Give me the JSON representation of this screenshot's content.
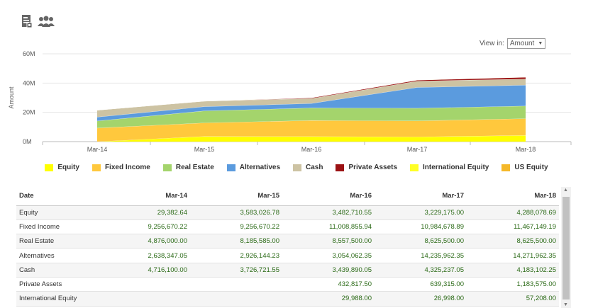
{
  "toolbar": {
    "icons": [
      "report-icon",
      "users-icon"
    ]
  },
  "view_in": {
    "label": "View in:",
    "value": "Amount"
  },
  "colors": {
    "Equity": "#ffff00",
    "Fixed Income": "#ffc83d",
    "Real Estate": "#a4d46c",
    "Alternatives": "#5b9bde",
    "Cash": "#cdc3a3",
    "Private Assets": "#9b1214",
    "International Equity": "#ffff26",
    "US Equity": "#f5b829"
  },
  "chart_data": {
    "type": "area",
    "stacked": true,
    "categories": [
      "Mar-14",
      "Mar-15",
      "Mar-16",
      "Mar-17",
      "Mar-18"
    ],
    "ylabel": "Amount",
    "ylim": [
      0,
      60000000
    ],
    "yticks": [
      0,
      20000000,
      40000000,
      60000000
    ],
    "ytick_labels": [
      "0M",
      "20M",
      "40M",
      "60M"
    ],
    "grid": true,
    "legend": "bottom",
    "series": [
      {
        "name": "Equity",
        "values": [
          29382.64,
          3583026.78,
          3482710.55,
          3229175.0,
          4288078.69
        ]
      },
      {
        "name": "Fixed Income",
        "values": [
          9256670.22,
          9256670.22,
          11008855.94,
          10984678.89,
          11467149.19
        ]
      },
      {
        "name": "Real Estate",
        "values": [
          4876000.0,
          8185585.0,
          8557500.0,
          8625500.0,
          8625500.0
        ]
      },
      {
        "name": "Alternatives",
        "values": [
          2638347.05,
          2926144.23,
          3054062.35,
          14235962.35,
          14271962.35
        ]
      },
      {
        "name": "Cash",
        "values": [
          4716100.0,
          3726721.55,
          3439890.05,
          4325237.05,
          4183102.25
        ]
      },
      {
        "name": "Private Assets",
        "values": [
          0,
          0,
          432817.5,
          639315.0,
          1183575.0
        ]
      },
      {
        "name": "International Equity",
        "values": [
          0,
          0,
          29988.0,
          26998.0,
          57208.0
        ]
      },
      {
        "name": "US Equity",
        "values": [
          0,
          0,
          0,
          0,
          0
        ]
      }
    ]
  },
  "table": {
    "header": [
      "Date",
      "Mar-14",
      "Mar-15",
      "Mar-16",
      "Mar-17",
      "Mar-18"
    ],
    "rows": [
      [
        "Equity",
        "29,382.64",
        "3,583,026.78",
        "3,482,710.55",
        "3,229,175.00",
        "4,288,078.69"
      ],
      [
        "Fixed Income",
        "9,256,670.22",
        "9,256,670.22",
        "11,008,855.94",
        "10,984,678.89",
        "11,467,149.19"
      ],
      [
        "Real Estate",
        "4,876,000.00",
        "8,185,585.00",
        "8,557,500.00",
        "8,625,500.00",
        "8,625,500.00"
      ],
      [
        "Alternatives",
        "2,638,347.05",
        "2,926,144.23",
        "3,054,062.35",
        "14,235,962.35",
        "14,271,962.35"
      ],
      [
        "Cash",
        "4,716,100.00",
        "3,726,721.55",
        "3,439,890.05",
        "4,325,237.05",
        "4,183,102.25"
      ],
      [
        "Private Assets",
        "",
        "",
        "432,817.50",
        "639,315.00",
        "1,183,575.00"
      ],
      [
        "International Equity",
        "",
        "",
        "29,988.00",
        "26,998.00",
        "57,208.00"
      ]
    ]
  }
}
